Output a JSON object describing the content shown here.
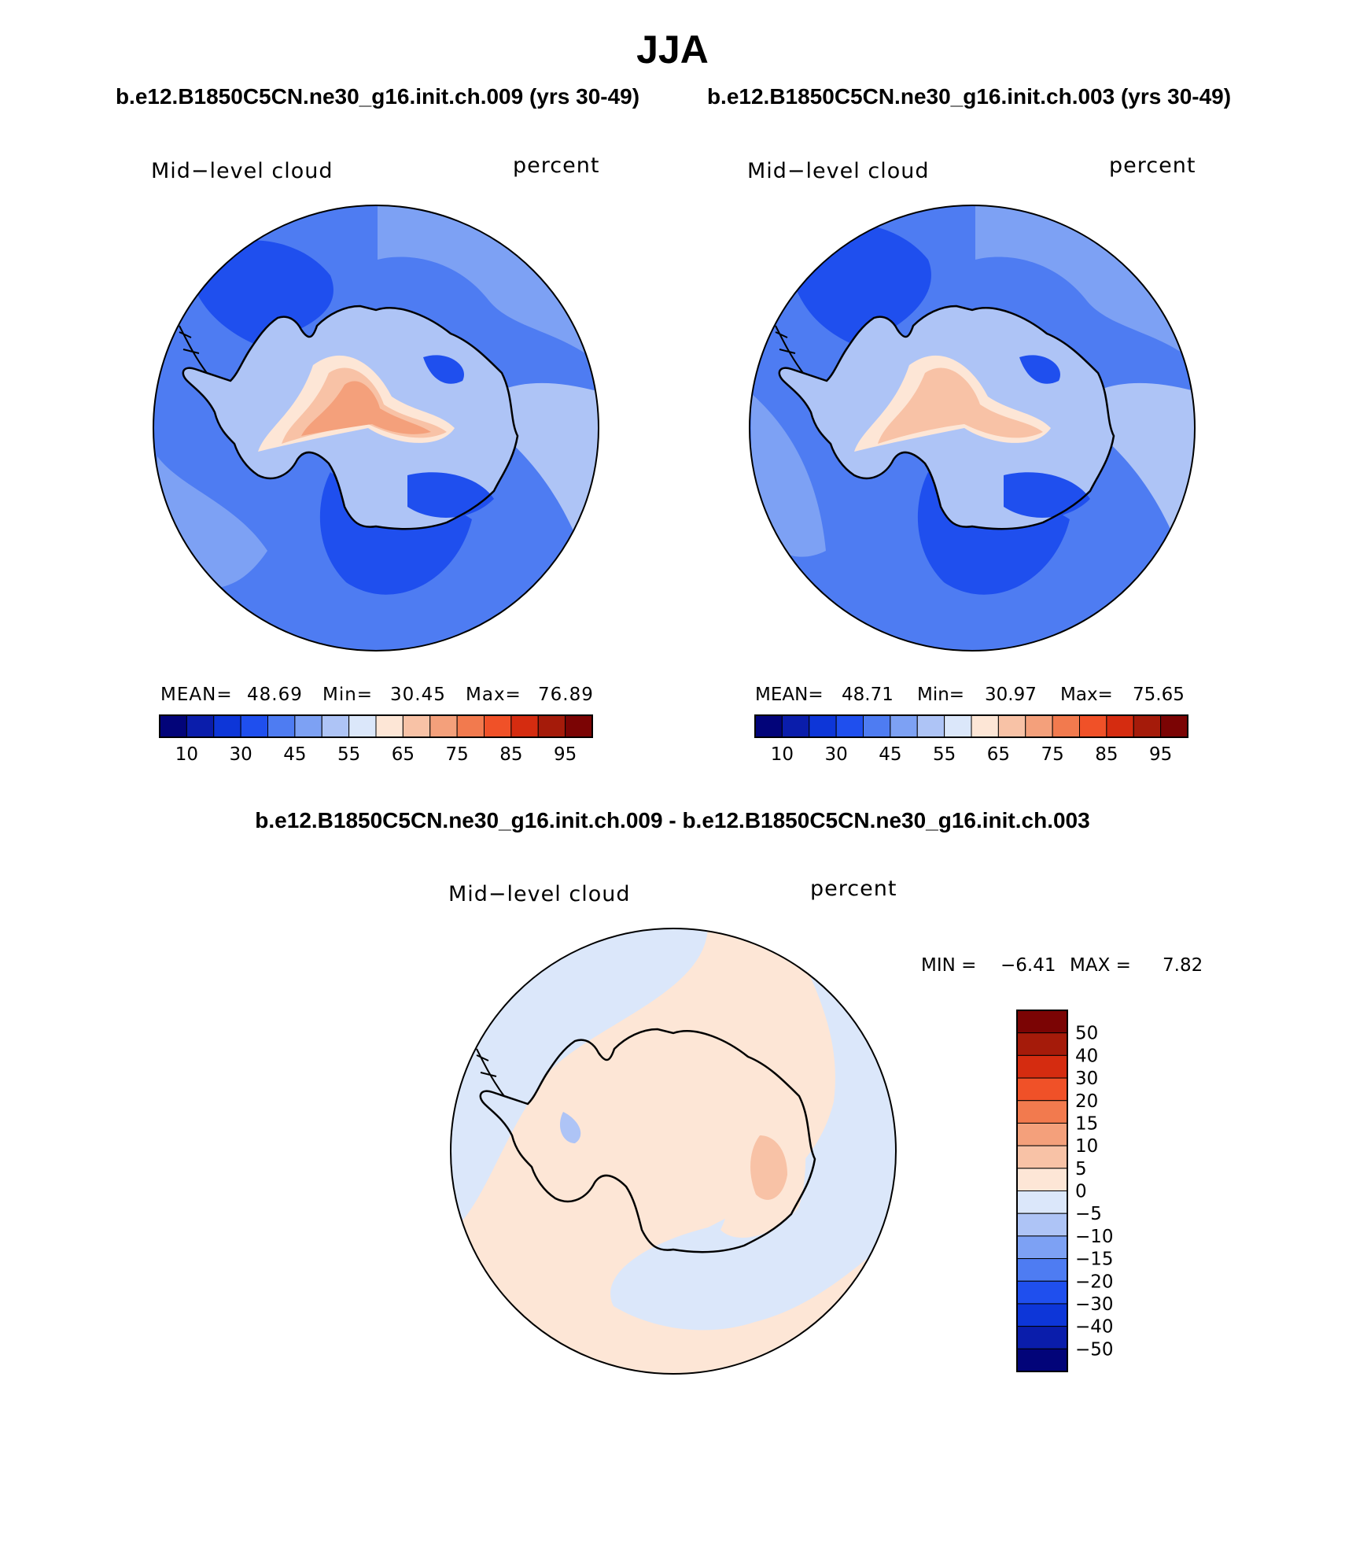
{
  "figure": {
    "title": "JJA",
    "left_case": "b.e12.B1850C5CN.ne30_g16.init.ch.009 (yrs 30-49)",
    "right_case": "b.e12.B1850C5CN.ne30_g16.init.ch.003 (yrs 30-49)",
    "diff_title": "b.e12.B1850C5CN.ne30_g16.init.ch.009 - b.e12.B1850C5CN.ne30_g16.init.ch.003"
  },
  "panels": [
    {
      "variable": "Mid−level cloud",
      "units": "percent",
      "mean_label": "MEAN=",
      "mean": "48.69",
      "min_label": "Min=",
      "min": "30.45",
      "max_label": "Max=",
      "max": "76.89"
    },
    {
      "variable": "Mid−level cloud",
      "units": "percent",
      "mean_label": "MEAN=",
      "mean": "48.71",
      "min_label": "Min=",
      "min": "30.97",
      "max_label": "Max=",
      "max": "75.65"
    }
  ],
  "diff_panel": {
    "variable": "Mid−level cloud",
    "units": "percent",
    "min_label": "MIN =",
    "min": "−6.41",
    "max_label": "MAX =",
    "max": "7.82"
  },
  "colorbar": {
    "ticks": [
      "10",
      "30",
      "45",
      "55",
      "65",
      "75",
      "85",
      "95"
    ],
    "colors": [
      "#020479",
      "#0a1dab",
      "#0d36d8",
      "#1f4fee",
      "#4e7cf2",
      "#7da1f4",
      "#aec4f6",
      "#dbe7fa",
      "#fde6d6",
      "#f8c2a6",
      "#f4a07b",
      "#f27a4e",
      "#f05128",
      "#d52c10",
      "#a51b0a",
      "#7b0404"
    ]
  },
  "diff_colorbar": {
    "ticks": [
      "50",
      "40",
      "30",
      "20",
      "15",
      "10",
      "5",
      "0",
      "−5",
      "−10",
      "−15",
      "−20",
      "−30",
      "−40",
      "−50"
    ],
    "colors": [
      "#7b0404",
      "#a51b0a",
      "#d52c10",
      "#f05128",
      "#f27a4e",
      "#f4a07b",
      "#f8c2a6",
      "#fde6d6",
      "#dbe7fa",
      "#aec4f6",
      "#7da1f4",
      "#4e7cf2",
      "#1f4fee",
      "#0d36d8",
      "#0a1dab",
      "#020479"
    ]
  },
  "map_colors": {
    "ocean": "#4e7cf2",
    "light": "#7da1f4",
    "dark": "#1f4fee",
    "pale": "#aec4f6",
    "warm1": "#fde6d6",
    "warm2": "#f8c2a6",
    "warm3": "#f4a07b",
    "diff_neg": "#dbe7fa",
    "diff_pos": "#fde6d6",
    "diff_pos2": "#f8c2a6",
    "diff_neg2": "#aec4f6"
  }
}
